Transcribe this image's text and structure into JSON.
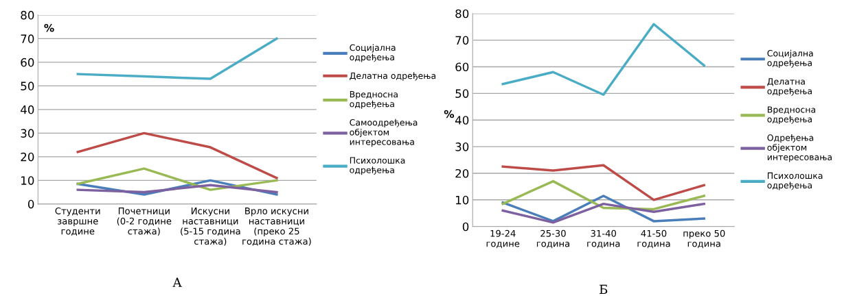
{
  "chart_data": [
    {
      "type": "line",
      "ylabel": "%",
      "categories": [
        "Студенти\nзавршне\nгодине",
        "Почетници\n(0-2 године\nстажа)",
        "Искусни\nнаставници\n(5-15 година\nстажа)",
        "Врло искусни\nнаставници\n(преко 25\nгодина стажа)"
      ],
      "series": [
        {
          "name": "Социјална\nодређења",
          "color": "#4a7ebb",
          "values": [
            8.5,
            4,
            10,
            4
          ]
        },
        {
          "name": "Делатна одређења",
          "color": "#be4b48",
          "values": [
            22,
            30,
            24,
            11
          ]
        },
        {
          "name": "Вредносна\nодређења",
          "color": "#98b954",
          "values": [
            8.5,
            15,
            6,
            10
          ]
        },
        {
          "name": "Самоодређења\nобјектом\nинтересовања",
          "color": "#7d60a0",
          "values": [
            6,
            5,
            8,
            5
          ]
        },
        {
          "name": "Психолошка\nодређења",
          "color": "#4bacc6",
          "values": [
            55,
            54,
            53,
            70
          ]
        }
      ],
      "ylim": [
        0,
        80
      ],
      "yticks": [
        0,
        10,
        20,
        30,
        40,
        50,
        60,
        70,
        80
      ],
      "grid": "y",
      "legend": "right",
      "marker": "none",
      "line_style": "solid",
      "annotations": [
        "А"
      ]
    },
    {
      "type": "line",
      "ylabel": "%",
      "categories": [
        "19-24\nгодине",
        "25-30\nгодина",
        "31-40\nгодина",
        "41-50\nгодина",
        "преко 50\nгодина"
      ],
      "series": [
        {
          "name": "Социјална\nодређења",
          "color": "#4a7ebb",
          "values": [
            9,
            2,
            11.5,
            2,
            3
          ]
        },
        {
          "name": "Делатна\nодређења",
          "color": "#be4b48",
          "values": [
            22.5,
            21,
            23,
            10,
            15.5
          ]
        },
        {
          "name": "Вредносна\nодређења",
          "color": "#98b954",
          "values": [
            8.5,
            17,
            7,
            6.5,
            11.5
          ]
        },
        {
          "name": "Одређења\nобјектом\nинтересовања",
          "color": "#7d60a0",
          "values": [
            6,
            1.5,
            8.5,
            5.5,
            8.5
          ]
        },
        {
          "name": "Психолошка\nодређења",
          "color": "#4bacc6",
          "values": [
            53.5,
            58,
            49.5,
            76,
            60.5
          ]
        }
      ],
      "ylim": [
        0,
        80
      ],
      "yticks": [
        0,
        10,
        20,
        30,
        40,
        50,
        60,
        70,
        80
      ],
      "grid": "y",
      "legend": "right",
      "marker": "none",
      "line_style": "solid",
      "annotations": [
        "Б"
      ]
    }
  ]
}
